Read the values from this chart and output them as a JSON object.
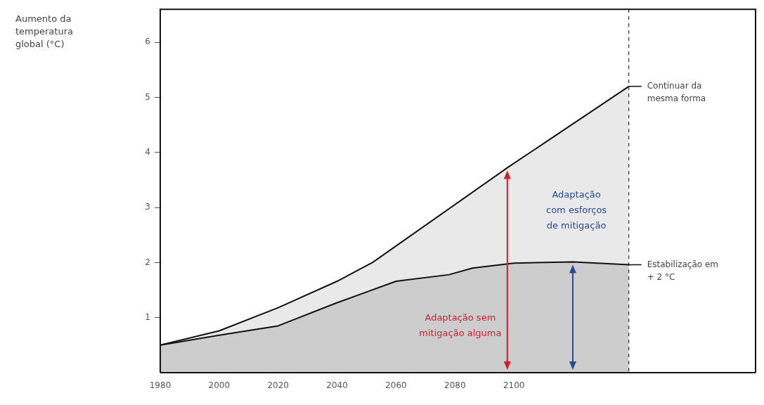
{
  "chart_data": {
    "type": "area",
    "xlim": [
      1980,
      2182
    ],
    "xticks": [
      1980,
      2000,
      2020,
      2040,
      2060,
      2080,
      2100
    ],
    "ylim": [
      0,
      6.6
    ],
    "yticks": [
      1,
      2,
      3,
      4,
      5,
      6
    ],
    "grid": false,
    "legend": "right",
    "series": [
      {
        "name": "Continuar da mesma forma",
        "color": "#e9e9e9",
        "x": [
          1980,
          2000,
          2020,
          2040,
          2052,
          2098,
          2139
        ],
        "values": [
          0.5,
          0.76,
          1.18,
          1.66,
          2.0,
          3.73,
          5.2
        ]
      },
      {
        "name": "Estabilização em + 2 °C",
        "color": "#cdcdcd",
        "x": [
          1980,
          2000,
          2020,
          2040,
          2060,
          2078,
          2086,
          2100,
          2120,
          2139
        ],
        "values": [
          0.5,
          0.68,
          0.85,
          1.27,
          1.66,
          1.78,
          1.9,
          1.99,
          2.01,
          1.96
        ]
      }
    ],
    "ref_lines": [
      {
        "axis": "x",
        "value": 2139,
        "line_style": "dashed",
        "color": "#000000"
      }
    ],
    "annotations": [
      "Aumento da temperatura global (°C)",
      "Adaptação sem mitigação alguma",
      "Adaptação com esforços de mitigação"
    ]
  }
}
